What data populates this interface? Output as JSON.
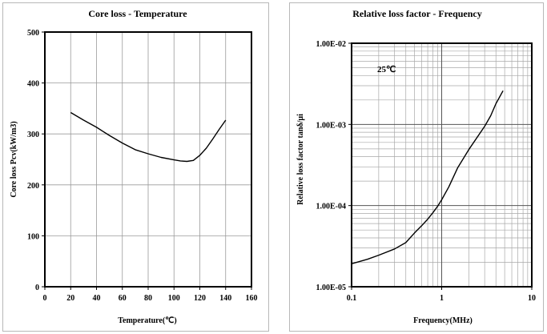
{
  "chart_data": [
    {
      "type": "line",
      "title": "Core loss - Temperature",
      "xlabel": "Temperature(℃)",
      "ylabel": "Core loss Pcv(kW/m3)",
      "xlim": [
        0,
        160
      ],
      "ylim": [
        0,
        500
      ],
      "xticks": [
        0,
        20,
        40,
        60,
        80,
        100,
        120,
        140,
        160
      ],
      "yticks": [
        0,
        100,
        200,
        300,
        400,
        500
      ],
      "xtick_labels": [
        "0",
        "20",
        "40",
        "60",
        "80",
        "100",
        "120",
        "140",
        "160"
      ],
      "ytick_labels": [
        "0",
        "100",
        "200",
        "300",
        "400",
        "500"
      ],
      "grid": true,
      "series": [
        {
          "x": [
            20,
            30,
            40,
            50,
            60,
            70,
            80,
            90,
            100,
            105,
            110,
            115,
            120,
            125,
            130,
            135,
            140
          ],
          "y": [
            342,
            327,
            313,
            297,
            282,
            269,
            261,
            254,
            249,
            247,
            246,
            248,
            258,
            272,
            290,
            309,
            327
          ]
        }
      ]
    },
    {
      "type": "line",
      "title": "Relative loss factor - Frequency",
      "xlabel": "Frequency(MHz)",
      "ylabel": "Relative loss factor tanδ/μi",
      "xscale": "log",
      "yscale": "log",
      "xlim": [
        0.1,
        10
      ],
      "ylim": [
        1e-05,
        0.01
      ],
      "xticks": [
        0.1,
        1,
        10
      ],
      "yticks": [
        1e-05,
        0.0001,
        0.001,
        0.01
      ],
      "xtick_labels": [
        "0.1",
        "1",
        "10"
      ],
      "ytick_labels": [
        "1.00E-05",
        "1.00E-04",
        "1.00E-03",
        "1.00E-02"
      ],
      "grid": true,
      "annotation": "25℃",
      "series": [
        {
          "x": [
            0.1,
            0.15,
            0.2,
            0.3,
            0.4,
            0.5,
            0.6,
            0.7,
            0.8,
            0.9,
            1.0,
            1.2,
            1.5,
            2.0,
            3.0,
            3.5,
            4.0,
            4.8
          ],
          "y": [
            1.92e-05,
            2.18e-05,
            2.45e-05,
            2.92e-05,
            3.5e-05,
            4.6e-05,
            5.65e-05,
            6.8e-05,
            8.2e-05,
            9.8e-05,
            0.000118,
            0.00017,
            0.00029,
            0.00049,
            0.00095,
            0.00128,
            0.0018,
            0.0026
          ]
        }
      ]
    }
  ]
}
